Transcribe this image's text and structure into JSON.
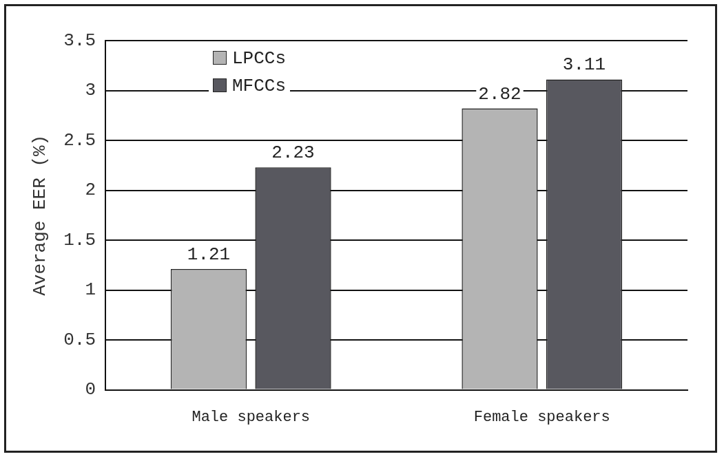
{
  "chart_data": {
    "type": "bar",
    "ylabel": "Average EER (%)",
    "categories": [
      "Male speakers",
      "Female speakers"
    ],
    "series": [
      {
        "name": "LPCCs",
        "color": "#b4b4b4",
        "values": [
          1.21,
          2.82
        ]
      },
      {
        "name": "MFCCs",
        "color": "#58585f",
        "values": [
          2.23,
          3.11
        ]
      }
    ],
    "ylim": [
      0,
      3.5
    ],
    "yticks": [
      0,
      0.5,
      1,
      1.5,
      2,
      2.5,
      3,
      3.5
    ],
    "grid": "y",
    "legend": "top left",
    "data_labels": true
  }
}
